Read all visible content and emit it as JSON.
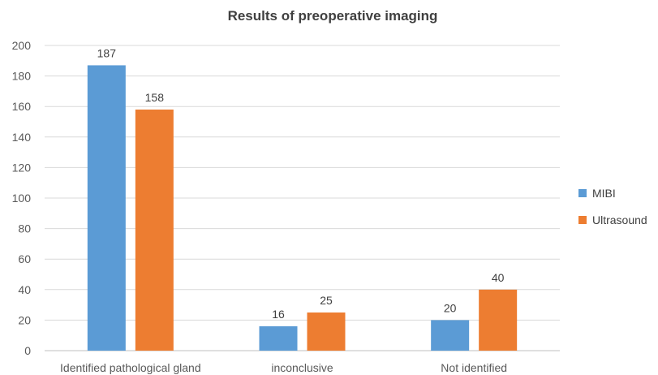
{
  "chart_data": {
    "type": "bar",
    "title": "Results of preoperative imaging",
    "categories": [
      "Identified pathological gland",
      "inconclusive",
      "Not identified"
    ],
    "series": [
      {
        "name": "MIBI",
        "values": [
          187,
          16,
          20
        ],
        "color": "#5b9bd5"
      },
      {
        "name": "Ultrasound",
        "values": [
          158,
          25,
          40
        ],
        "color": "#ed7d31"
      }
    ],
    "ylim": [
      0,
      200
    ],
    "yticks": [
      0,
      20,
      40,
      60,
      80,
      100,
      120,
      140,
      160,
      180,
      200
    ],
    "grid": true,
    "legend": "right",
    "data_labels": true
  }
}
